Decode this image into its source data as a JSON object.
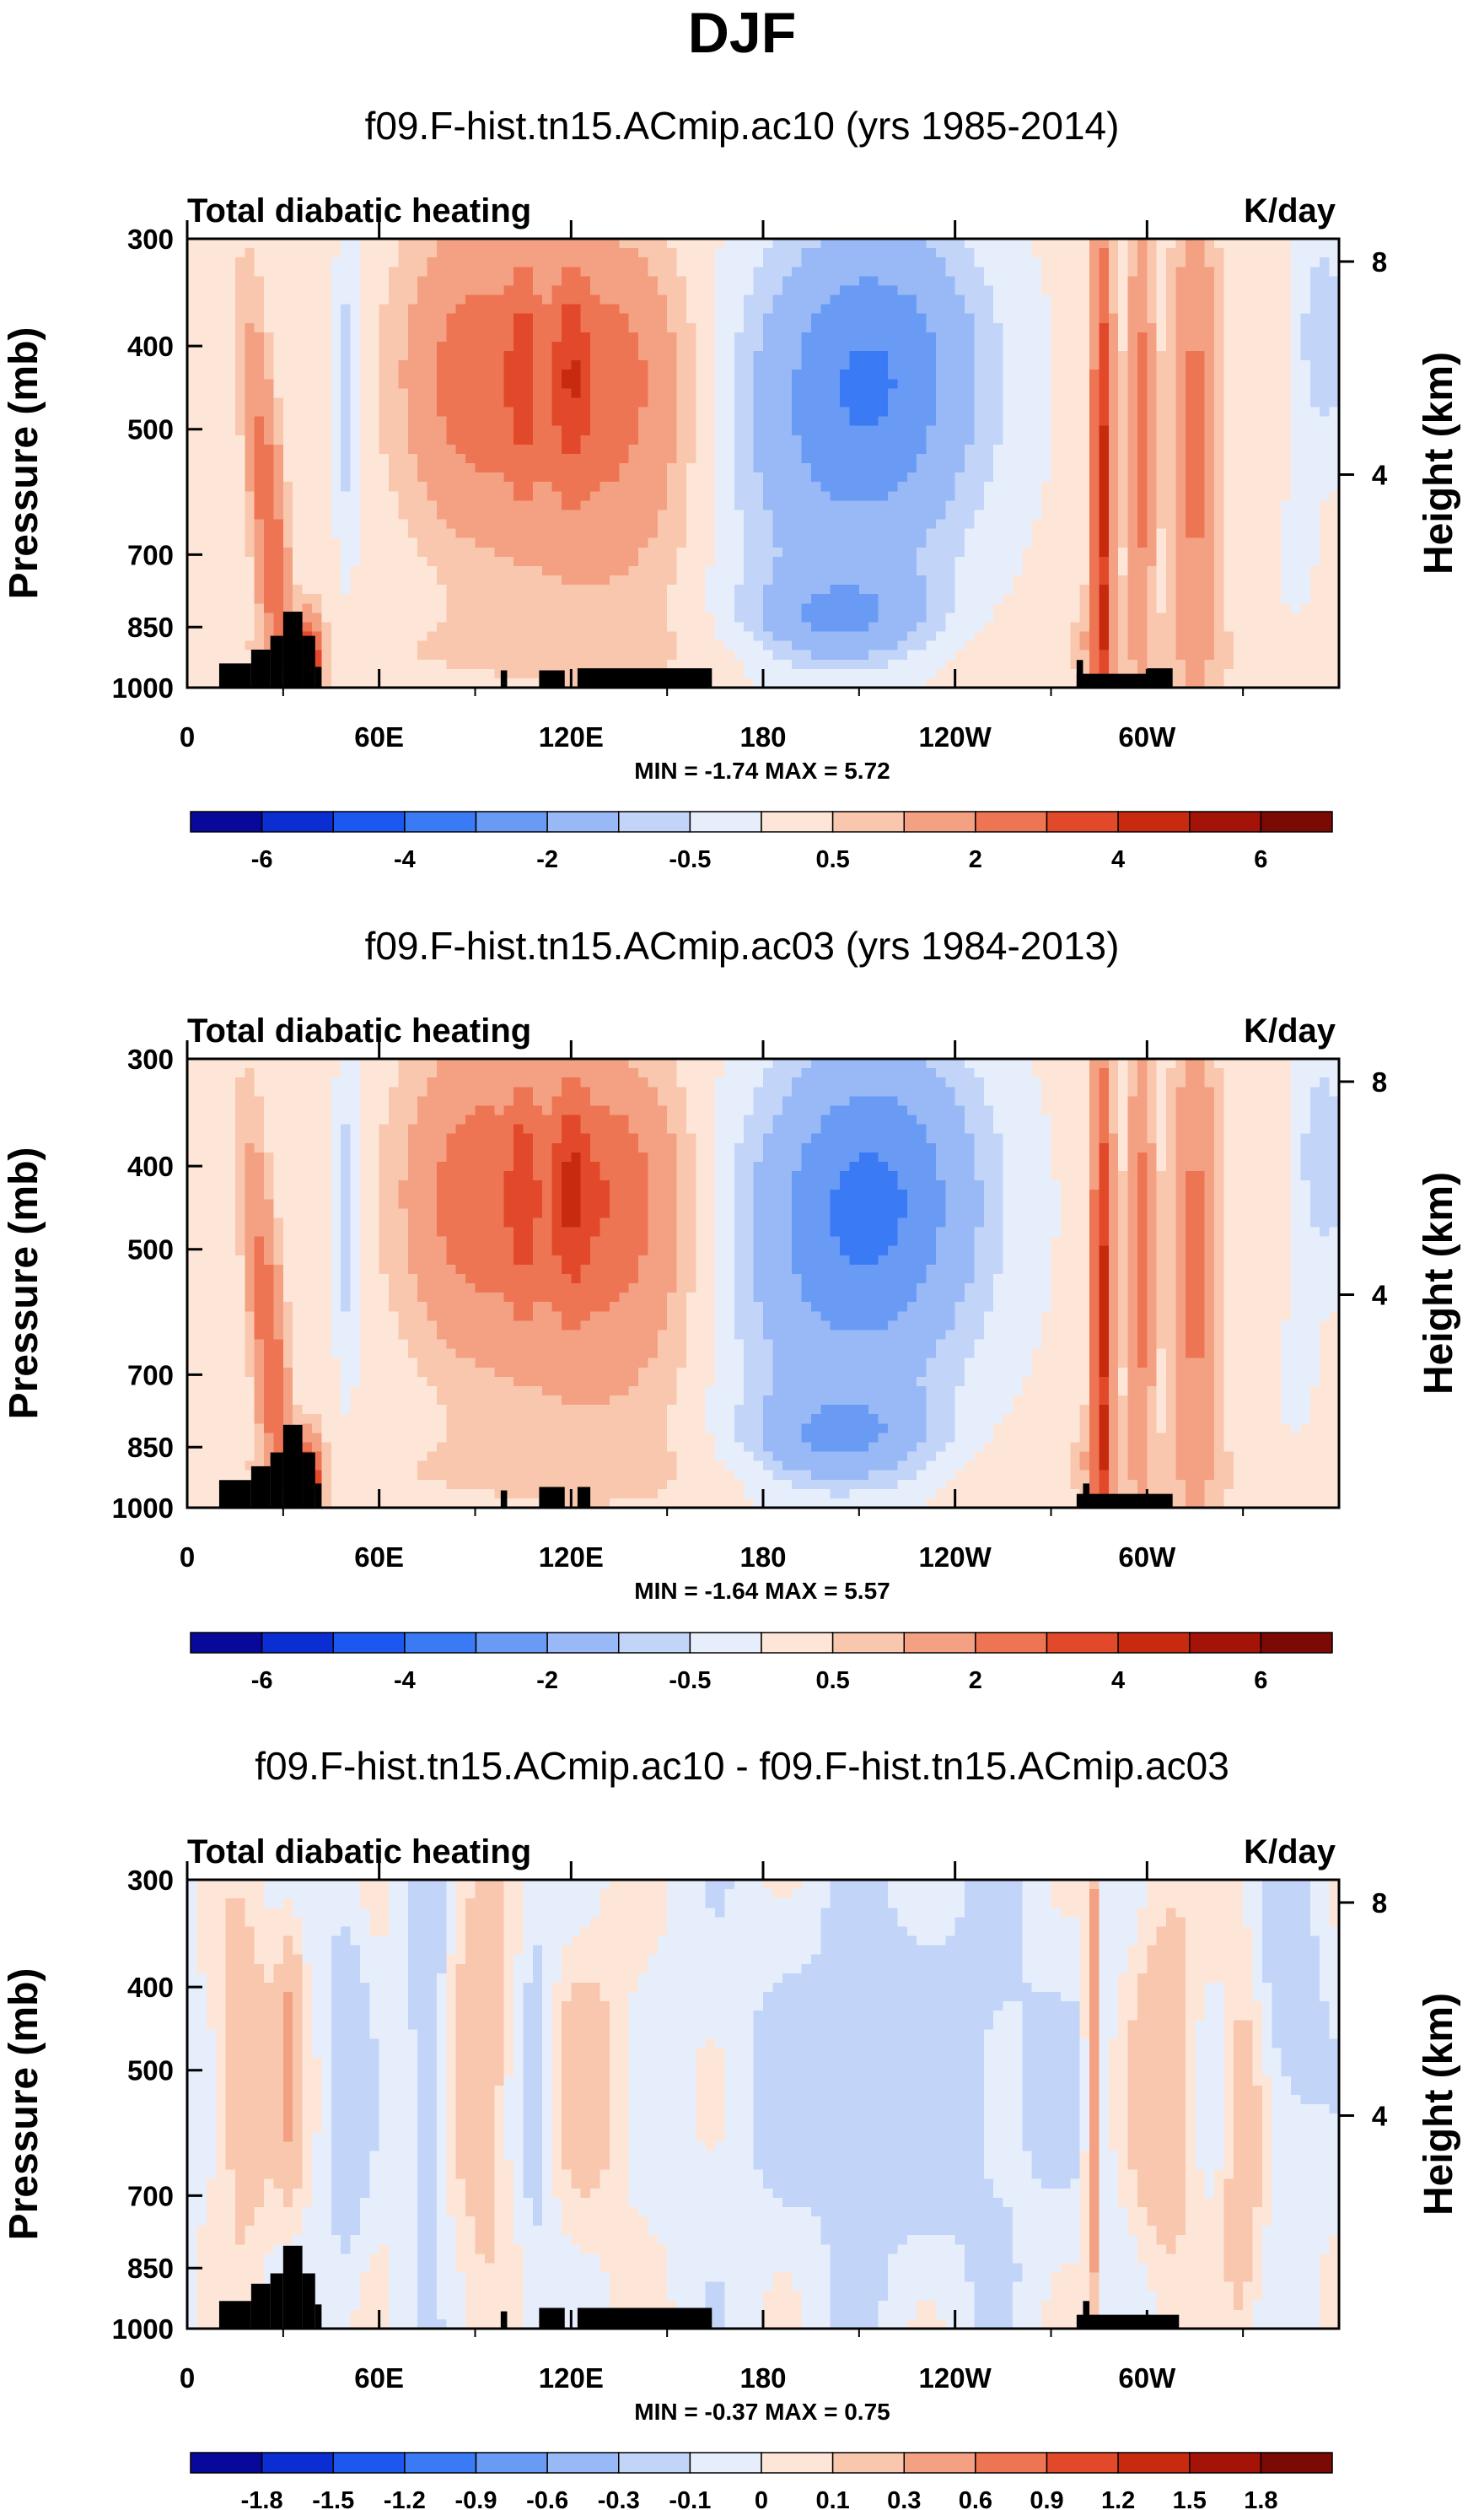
{
  "figure": {
    "title": "DJF",
    "x_tick_labels": [
      "0",
      "60E",
      "120E",
      "180",
      "120W",
      "60W"
    ],
    "y_tick_labels": [
      "300",
      "400",
      "500",
      "700",
      "850",
      "1000"
    ],
    "right_tick_labels": [
      "8",
      "4"
    ],
    "colors": {
      "topo": "#000000",
      "frame": "#000000"
    }
  },
  "chart_data": [
    {
      "type": "heatmap",
      "title": "f09.F-hist.tn15.ACmip.ac10 (yrs 1985-2014)",
      "left_label": "Total diabatic heating",
      "right_label": "K/day",
      "xlabel": "",
      "ylabel": "Pressure (mb)",
      "y2label": "Height (km)",
      "x_range_deg": [
        0,
        360
      ],
      "y_range_mb": [
        1000,
        300
      ],
      "x_ticks": [
        0,
        60,
        120,
        180,
        240,
        300
      ],
      "y_ticks": [
        300,
        400,
        500,
        700,
        850,
        1000
      ],
      "height_ticks_km": [
        8,
        4
      ],
      "min_text": "MIN =  -1.74   MAX =   5.72",
      "levels": [
        -6,
        -5,
        -4,
        -3,
        -2,
        -1,
        -0.5,
        0,
        0.5,
        1,
        2,
        3,
        4,
        5,
        6
      ],
      "colorbar_labels": [
        "-6",
        "-4",
        "-2",
        "-0.5",
        "0.5",
        "2",
        "4",
        "6"
      ],
      "colorbar_colors": [
        "#08089a",
        "#0a2ed1",
        "#1c57ef",
        "#3b7af5",
        "#6a9bf4",
        "#98b9f6",
        "#c2d5f9",
        "#e6eefc",
        "#fde6d8",
        "#f9c7ad",
        "#f4a183",
        "#ee7553",
        "#e2492a",
        "#c82a10",
        "#a31307",
        "#7a0a03"
      ]
    },
    {
      "type": "heatmap",
      "title": "f09.F-hist.tn15.ACmip.ac03 (yrs 1984-2013)",
      "left_label": "Total diabatic heating",
      "right_label": "K/day",
      "xlabel": "",
      "ylabel": "Pressure (mb)",
      "y2label": "Height (km)",
      "x_range_deg": [
        0,
        360
      ],
      "y_range_mb": [
        1000,
        300
      ],
      "x_ticks": [
        0,
        60,
        120,
        180,
        240,
        300
      ],
      "y_ticks": [
        300,
        400,
        500,
        700,
        850,
        1000
      ],
      "height_ticks_km": [
        8,
        4
      ],
      "min_text": "MIN =  -1.64   MAX =   5.57",
      "levels": [
        -6,
        -5,
        -4,
        -3,
        -2,
        -1,
        -0.5,
        0,
        0.5,
        1,
        2,
        3,
        4,
        5,
        6
      ],
      "colorbar_labels": [
        "-6",
        "-4",
        "-2",
        "-0.5",
        "0.5",
        "2",
        "4",
        "6"
      ],
      "colorbar_colors": [
        "#08089a",
        "#0a2ed1",
        "#1c57ef",
        "#3b7af5",
        "#6a9bf4",
        "#98b9f6",
        "#c2d5f9",
        "#e6eefc",
        "#fde6d8",
        "#f9c7ad",
        "#f4a183",
        "#ee7553",
        "#e2492a",
        "#c82a10",
        "#a31307",
        "#7a0a03"
      ]
    },
    {
      "type": "heatmap",
      "title": "f09.F-hist.tn15.ACmip.ac10 - f09.F-hist.tn15.ACmip.ac03",
      "left_label": "Total diabatic heating",
      "right_label": "K/day",
      "xlabel": "",
      "ylabel": "Pressure (mb)",
      "y2label": "Height (km)",
      "x_range_deg": [
        0,
        360
      ],
      "y_range_mb": [
        1000,
        300
      ],
      "x_ticks": [
        0,
        60,
        120,
        180,
        240,
        300
      ],
      "y_ticks": [
        300,
        400,
        500,
        700,
        850,
        1000
      ],
      "height_ticks_km": [
        8,
        4
      ],
      "min_text": "MIN =  -0.37   MAX =   0.75",
      "levels": [
        -1.8,
        -1.5,
        -1.2,
        -0.9,
        -0.6,
        -0.3,
        -0.1,
        0,
        0.1,
        0.3,
        0.6,
        0.9,
        1.2,
        1.5,
        1.8
      ],
      "colorbar_labels": [
        "-1.8",
        "-1.5",
        "-1.2",
        "-0.9",
        "-0.6",
        "-0.3",
        "-0.1",
        "0",
        "0.1",
        "0.3",
        "0.6",
        "0.9",
        "1.2",
        "1.5",
        "1.8"
      ],
      "colorbar_colors": [
        "#08089a",
        "#0a2ed1",
        "#1c57ef",
        "#3b7af5",
        "#6a9bf4",
        "#98b9f6",
        "#c2d5f9",
        "#e6eefc",
        "#fde6d8",
        "#f9c7ad",
        "#f4a183",
        "#ee7553",
        "#e2492a",
        "#c82a10",
        "#a31307",
        "#7a0a03"
      ]
    }
  ]
}
